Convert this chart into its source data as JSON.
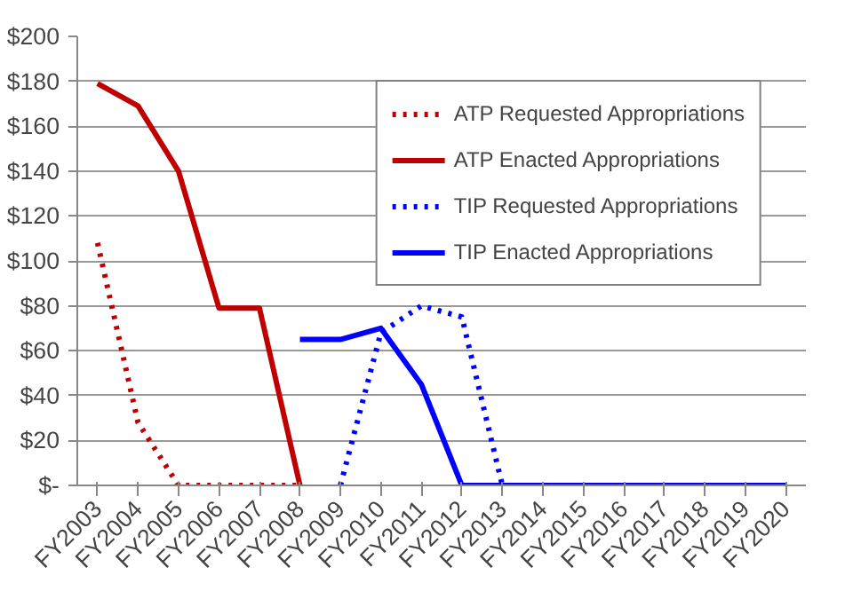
{
  "chart_data": {
    "type": "line",
    "categories": [
      "FY2003",
      "FY2004",
      "FY2005",
      "FY2006",
      "FY2007",
      "FY2008",
      "FY2009",
      "FY2010",
      "FY2011",
      "FY2012",
      "FY2013",
      "FY2014",
      "FY2015",
      "FY2016",
      "FY2017",
      "FY2018",
      "FY2019",
      "FY2020"
    ],
    "series": [
      {
        "name": "ATP Requested Appropriations",
        "color": "#c00000",
        "line_style": "dotted",
        "values": [
          108,
          28,
          0,
          0,
          0,
          0,
          null,
          null,
          null,
          null,
          null,
          null,
          null,
          null,
          null,
          null,
          null,
          null
        ]
      },
      {
        "name": "ATP Enacted Appropriations",
        "color": "#c00000",
        "line_style": "solid",
        "values": [
          179,
          169,
          140,
          79,
          79,
          0,
          null,
          null,
          null,
          null,
          null,
          null,
          null,
          null,
          null,
          null,
          null,
          null
        ]
      },
      {
        "name": "TIP Requested Appropriations",
        "color": "#0000ff",
        "line_style": "dotted",
        "values": [
          null,
          null,
          null,
          null,
          null,
          null,
          0,
          68,
          80,
          75,
          0,
          0,
          0,
          0,
          0,
          0,
          0,
          0
        ]
      },
      {
        "name": "TIP Enacted Appropriations",
        "color": "#0000ff",
        "line_style": "solid",
        "values": [
          null,
          null,
          null,
          null,
          null,
          65,
          65,
          70,
          45,
          0,
          0,
          0,
          0,
          0,
          0,
          0,
          0,
          0
        ]
      }
    ],
    "ylim": [
      0,
      200
    ],
    "yticks": [
      {
        "value": 0,
        "label": "$-"
      },
      {
        "value": 20,
        "label": "$20"
      },
      {
        "value": 40,
        "label": "$40"
      },
      {
        "value": 60,
        "label": "$60"
      },
      {
        "value": 80,
        "label": "$80"
      },
      {
        "value": 100,
        "label": "$100"
      },
      {
        "value": 120,
        "label": "$120"
      },
      {
        "value": 140,
        "label": "$140"
      },
      {
        "value": 160,
        "label": "$160"
      },
      {
        "value": 180,
        "label": "$180"
      },
      {
        "value": 200,
        "label": "$200"
      }
    ],
    "grid": "y",
    "legend": "top right",
    "marker": "none"
  }
}
